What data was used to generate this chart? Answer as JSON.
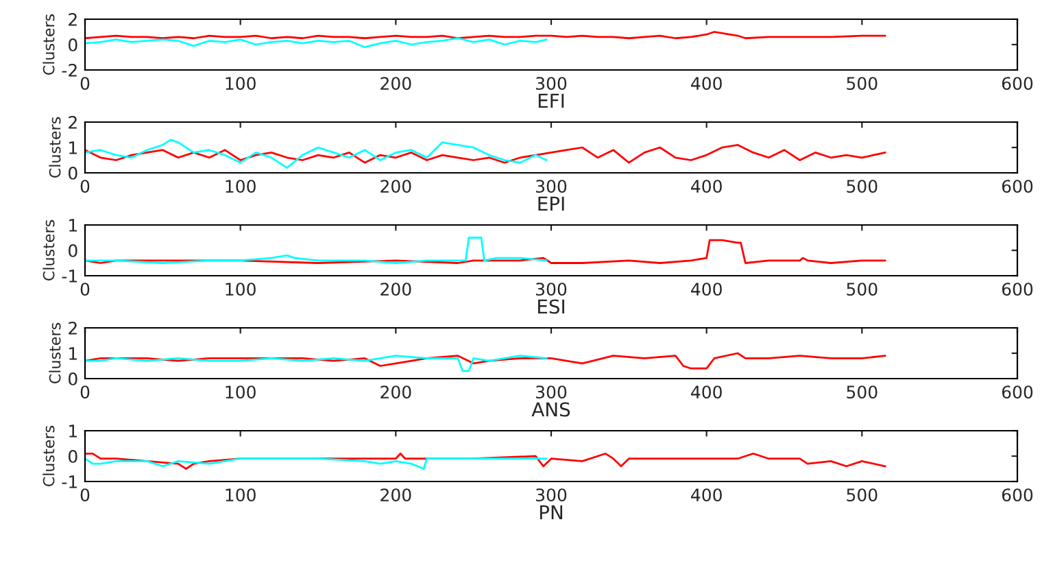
{
  "chart_data": [
    {
      "type": "line",
      "xlabel": "EFI",
      "ylabel": "Clusters",
      "xlim": [
        0,
        600
      ],
      "xticks": [
        0,
        100,
        200,
        300,
        400,
        500,
        600
      ],
      "ylim": [
        -2,
        2
      ],
      "yticks": [
        -2,
        0,
        2
      ],
      "series": [
        {
          "color": "#ff0000",
          "x": [
            0,
            10,
            20,
            30,
            40,
            50,
            60,
            70,
            80,
            90,
            100,
            110,
            120,
            130,
            140,
            150,
            160,
            170,
            180,
            190,
            200,
            210,
            220,
            230,
            240,
            250,
            260,
            270,
            280,
            290,
            300,
            310,
            320,
            330,
            340,
            350,
            360,
            370,
            380,
            390,
            400,
            405,
            410,
            420,
            425,
            440,
            460,
            480,
            500,
            515
          ],
          "values": [
            0.5,
            0.6,
            0.7,
            0.6,
            0.6,
            0.5,
            0.6,
            0.5,
            0.7,
            0.6,
            0.6,
            0.7,
            0.5,
            0.6,
            0.5,
            0.7,
            0.6,
            0.6,
            0.5,
            0.6,
            0.7,
            0.6,
            0.6,
            0.7,
            0.5,
            0.6,
            0.7,
            0.6,
            0.6,
            0.7,
            0.7,
            0.6,
            0.7,
            0.6,
            0.6,
            0.5,
            0.6,
            0.7,
            0.5,
            0.6,
            0.8,
            1.0,
            0.9,
            0.7,
            0.5,
            0.6,
            0.6,
            0.6,
            0.7,
            0.7
          ]
        },
        {
          "color": "#00ffff",
          "x": [
            0,
            10,
            20,
            30,
            40,
            50,
            60,
            70,
            80,
            90,
            100,
            110,
            120,
            130,
            140,
            150,
            160,
            170,
            180,
            190,
            200,
            210,
            220,
            230,
            240,
            250,
            260,
            270,
            280,
            290,
            297
          ],
          "values": [
            0.1,
            0.2,
            0.4,
            0.2,
            0.3,
            0.4,
            0.3,
            -0.1,
            0.3,
            0.2,
            0.4,
            0.0,
            0.2,
            0.3,
            0.1,
            0.3,
            0.2,
            0.3,
            -0.2,
            0.1,
            0.3,
            0.0,
            0.2,
            0.3,
            0.5,
            0.2,
            0.4,
            0.0,
            0.3,
            0.2,
            0.4
          ]
        }
      ]
    },
    {
      "type": "line",
      "xlabel": "EPI",
      "ylabel": "Clusters",
      "xlim": [
        0,
        600
      ],
      "xticks": [
        0,
        100,
        200,
        300,
        400,
        500,
        600
      ],
      "ylim": [
        0,
        2
      ],
      "yticks": [
        0,
        1,
        2
      ],
      "series": [
        {
          "color": "#ff0000",
          "x": [
            0,
            10,
            20,
            30,
            40,
            50,
            60,
            70,
            80,
            90,
            100,
            110,
            120,
            130,
            140,
            150,
            160,
            170,
            180,
            190,
            200,
            210,
            220,
            230,
            240,
            250,
            260,
            270,
            280,
            290,
            300,
            310,
            320,
            330,
            340,
            350,
            360,
            370,
            380,
            390,
            400,
            410,
            420,
            430,
            440,
            450,
            460,
            470,
            480,
            490,
            500,
            515
          ],
          "values": [
            0.9,
            0.6,
            0.5,
            0.7,
            0.8,
            0.9,
            0.6,
            0.8,
            0.6,
            0.9,
            0.5,
            0.7,
            0.8,
            0.6,
            0.5,
            0.7,
            0.6,
            0.8,
            0.4,
            0.7,
            0.6,
            0.8,
            0.5,
            0.7,
            0.6,
            0.5,
            0.6,
            0.4,
            0.6,
            0.7,
            0.8,
            0.9,
            1.0,
            0.6,
            0.9,
            0.4,
            0.8,
            1.0,
            0.6,
            0.5,
            0.7,
            1.0,
            1.1,
            0.8,
            0.6,
            0.9,
            0.5,
            0.8,
            0.6,
            0.7,
            0.6,
            0.8
          ]
        },
        {
          "color": "#00ffff",
          "x": [
            0,
            10,
            20,
            30,
            40,
            50,
            55,
            60,
            70,
            80,
            90,
            100,
            110,
            120,
            130,
            140,
            150,
            160,
            170,
            180,
            190,
            200,
            210,
            220,
            230,
            240,
            250,
            260,
            270,
            280,
            290,
            297
          ],
          "values": [
            0.8,
            0.9,
            0.7,
            0.6,
            0.9,
            1.1,
            1.3,
            1.2,
            0.8,
            0.9,
            0.7,
            0.4,
            0.8,
            0.6,
            0.2,
            0.7,
            1.0,
            0.8,
            0.6,
            0.9,
            0.5,
            0.8,
            0.9,
            0.6,
            1.2,
            1.1,
            1.0,
            0.7,
            0.5,
            0.4,
            0.7,
            0.5
          ]
        }
      ]
    },
    {
      "type": "line",
      "xlabel": "ESI",
      "ylabel": "Clusters",
      "xlim": [
        0,
        600
      ],
      "xticks": [
        0,
        100,
        200,
        300,
        400,
        500,
        600
      ],
      "ylim": [
        -1,
        1
      ],
      "yticks": [
        -1,
        0,
        1
      ],
      "series": [
        {
          "color": "#ff0000",
          "x": [
            0,
            10,
            20,
            50,
            100,
            150,
            200,
            240,
            250,
            260,
            280,
            295,
            300,
            320,
            350,
            370,
            390,
            400,
            402,
            410,
            420,
            422,
            425,
            440,
            460,
            462,
            465,
            480,
            500,
            515
          ],
          "values": [
            -0.4,
            -0.5,
            -0.4,
            -0.4,
            -0.4,
            -0.5,
            -0.4,
            -0.5,
            -0.4,
            -0.4,
            -0.4,
            -0.3,
            -0.5,
            -0.5,
            -0.4,
            -0.5,
            -0.4,
            -0.3,
            0.4,
            0.4,
            0.3,
            0.3,
            -0.5,
            -0.4,
            -0.4,
            -0.3,
            -0.4,
            -0.5,
            -0.4,
            -0.4
          ]
        },
        {
          "color": "#00ffff",
          "x": [
            0,
            20,
            50,
            80,
            100,
            120,
            130,
            135,
            150,
            180,
            200,
            220,
            240,
            245,
            247,
            255,
            257,
            265,
            280,
            297
          ],
          "values": [
            -0.4,
            -0.4,
            -0.5,
            -0.4,
            -0.4,
            -0.3,
            -0.2,
            -0.3,
            -0.4,
            -0.4,
            -0.5,
            -0.4,
            -0.4,
            -0.4,
            0.5,
            0.5,
            -0.4,
            -0.3,
            -0.3,
            -0.4
          ]
        }
      ]
    },
    {
      "type": "line",
      "xlabel": "ANS",
      "ylabel": "Clusters",
      "xlim": [
        0,
        600
      ],
      "xticks": [
        0,
        100,
        200,
        300,
        400,
        500,
        600
      ],
      "ylim": [
        0,
        2
      ],
      "yticks": [
        0,
        1,
        2
      ],
      "series": [
        {
          "color": "#ff0000",
          "x": [
            0,
            10,
            20,
            40,
            60,
            80,
            100,
            120,
            140,
            160,
            180,
            190,
            200,
            220,
            240,
            250,
            260,
            280,
            300,
            320,
            340,
            360,
            380,
            385,
            390,
            400,
            405,
            420,
            425,
            440,
            460,
            480,
            500,
            515
          ],
          "values": [
            0.7,
            0.8,
            0.8,
            0.8,
            0.7,
            0.8,
            0.8,
            0.8,
            0.8,
            0.7,
            0.8,
            0.5,
            0.6,
            0.8,
            0.9,
            0.6,
            0.7,
            0.8,
            0.8,
            0.6,
            0.9,
            0.8,
            0.9,
            0.5,
            0.4,
            0.4,
            0.8,
            1.0,
            0.8,
            0.8,
            0.9,
            0.8,
            0.8,
            0.9
          ]
        },
        {
          "color": "#00ffff",
          "x": [
            0,
            10,
            20,
            40,
            60,
            80,
            100,
            120,
            140,
            160,
            180,
            200,
            220,
            240,
            243,
            247,
            250,
            260,
            280,
            297
          ],
          "values": [
            0.7,
            0.7,
            0.8,
            0.7,
            0.8,
            0.7,
            0.7,
            0.8,
            0.7,
            0.8,
            0.7,
            0.9,
            0.8,
            0.8,
            0.3,
            0.3,
            0.8,
            0.7,
            0.9,
            0.8
          ]
        }
      ]
    },
    {
      "type": "line",
      "xlabel": "PN",
      "ylabel": "Clusters",
      "xlim": [
        0,
        600
      ],
      "xticks": [
        0,
        100,
        200,
        300,
        400,
        500,
        600
      ],
      "ylim": [
        -1,
        1
      ],
      "yticks": [
        -1,
        0,
        1
      ],
      "series": [
        {
          "color": "#ff0000",
          "x": [
            0,
            5,
            10,
            20,
            40,
            60,
            65,
            70,
            80,
            100,
            150,
            200,
            203,
            206,
            250,
            290,
            295,
            300,
            320,
            330,
            335,
            340,
            345,
            350,
            400,
            420,
            430,
            435,
            440,
            460,
            465,
            480,
            490,
            500,
            515
          ],
          "values": [
            0.1,
            0.1,
            -0.1,
            -0.1,
            -0.2,
            -0.3,
            -0.5,
            -0.3,
            -0.2,
            -0.1,
            -0.1,
            -0.1,
            0.1,
            -0.1,
            -0.1,
            0.0,
            -0.4,
            -0.1,
            -0.2,
            0.0,
            0.1,
            -0.1,
            -0.4,
            -0.1,
            -0.1,
            -0.1,
            0.1,
            0.0,
            -0.1,
            -0.1,
            -0.3,
            -0.2,
            -0.4,
            -0.2,
            -0.4
          ]
        },
        {
          "color": "#00ffff",
          "x": [
            0,
            5,
            10,
            20,
            40,
            50,
            60,
            80,
            100,
            150,
            180,
            190,
            200,
            210,
            218,
            220,
            250,
            297
          ],
          "values": [
            -0.1,
            -0.3,
            -0.3,
            -0.2,
            -0.2,
            -0.4,
            -0.2,
            -0.3,
            -0.1,
            -0.1,
            -0.2,
            -0.3,
            -0.2,
            -0.3,
            -0.5,
            -0.1,
            -0.1,
            -0.1
          ]
        }
      ]
    }
  ]
}
